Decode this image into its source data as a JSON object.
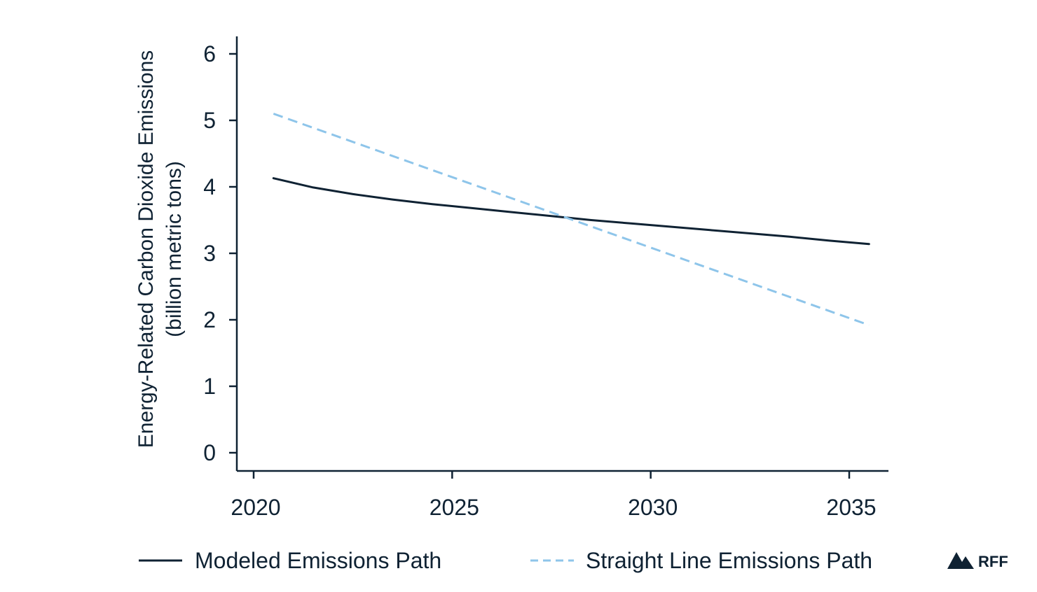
{
  "chart_data": {
    "type": "line",
    "title": "",
    "xlabel": "",
    "ylabel": "Energy-Related Carbon Dioxide Emissions",
    "ylabel_unit": "(billion metric tons)",
    "xlim": [
      2019.6,
      2035.9
    ],
    "ylim": [
      0,
      6
    ],
    "x_ticks": [
      2020,
      2025,
      2030,
      2035
    ],
    "y_ticks": [
      0,
      1,
      2,
      3,
      4,
      5,
      6
    ],
    "grid": false,
    "legend_position": "bottom",
    "series": [
      {
        "name": "Modeled Emissions Path",
        "style": "solid",
        "color": "#0f2233",
        "x": [
          2020.5,
          2021.5,
          2022.5,
          2023.5,
          2024.5,
          2025.5,
          2026.5,
          2027.5,
          2028.5,
          2029.5,
          2030.5,
          2031.5,
          2032.5,
          2033.5,
          2034.5,
          2035.5
        ],
        "values": [
          4.13,
          3.99,
          3.89,
          3.81,
          3.74,
          3.68,
          3.62,
          3.56,
          3.5,
          3.45,
          3.4,
          3.35,
          3.3,
          3.25,
          3.19,
          3.14
        ]
      },
      {
        "name": "Straight Line Emissions Path",
        "style": "dashed",
        "color": "#8ec5ea",
        "x": [
          2020.5,
          2035.5
        ],
        "values": [
          5.1,
          1.92
        ]
      }
    ]
  },
  "brand": {
    "logo_text": "RFF"
  }
}
